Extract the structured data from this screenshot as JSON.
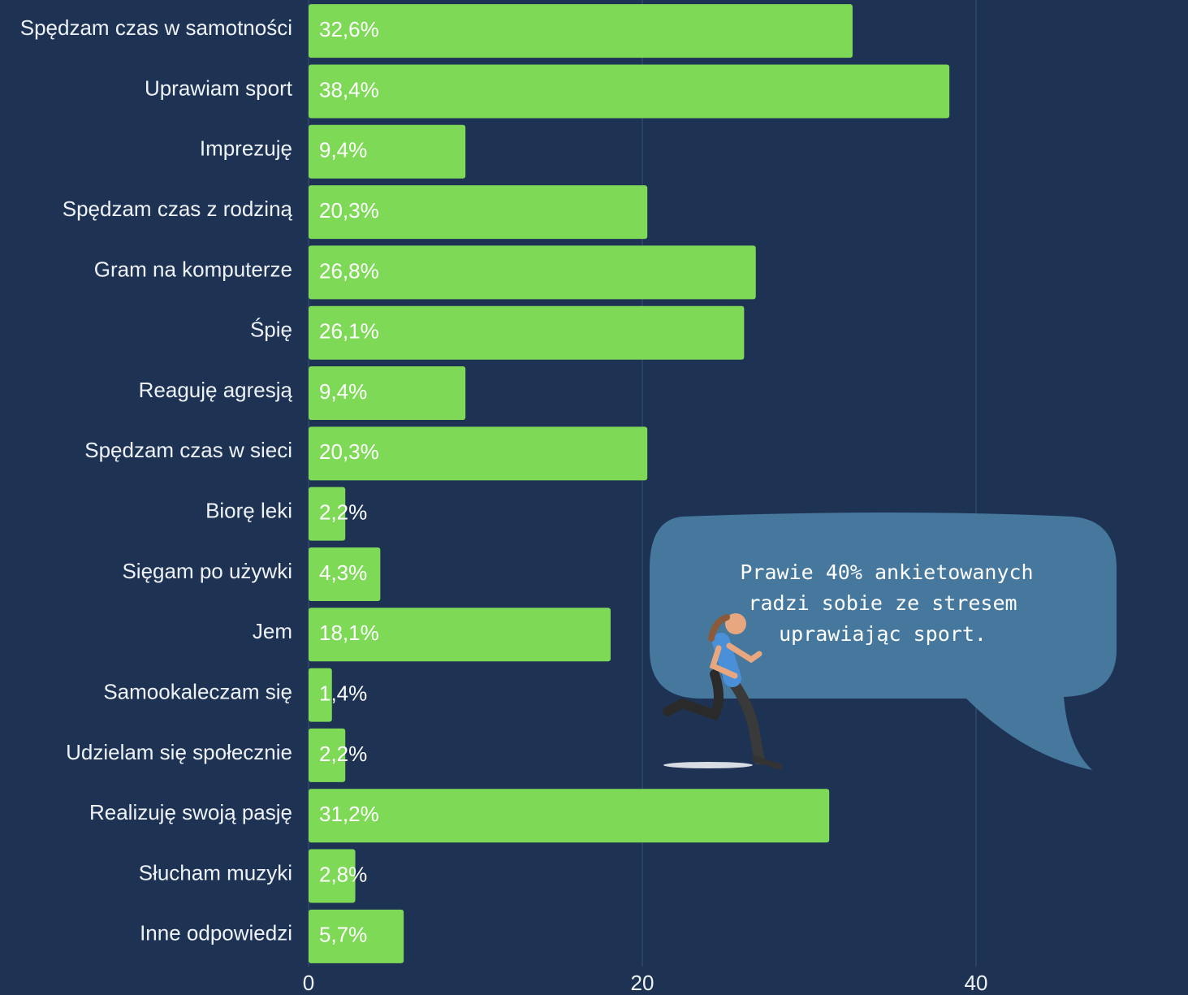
{
  "chart_data": {
    "type": "barh",
    "categories": [
      "Spędzam czas w samotności",
      "Uprawiam sport",
      "Imprezuję",
      "Spędzam czas z rodziną",
      "Gram na komputerze",
      "Śpię",
      "Reaguję agresją",
      "Spędzam czas w sieci",
      "Biorę leki",
      "Sięgam po używki",
      "Jem",
      "Samookaleczam się",
      "Udzielam się społecznie",
      "Realizuję swoją pasję",
      "Słucham muzyki",
      "Inne odpowiedzi"
    ],
    "values": [
      32.6,
      38.4,
      9.4,
      20.3,
      26.8,
      26.1,
      9.4,
      20.3,
      2.2,
      4.3,
      18.1,
      1.4,
      2.2,
      31.2,
      2.8,
      5.7
    ],
    "value_labels": [
      "32,6%",
      "38,4%",
      "9,4%",
      "20,3%",
      "26,8%",
      "26,1%",
      "9,4%",
      "20,3%",
      "2,2%",
      "4,3%",
      "18,1%",
      "1,4%",
      "2,2%",
      "31,2%",
      "2,8%",
      "5,7%"
    ],
    "color": "#7ed957",
    "xlim": [
      0,
      52.7
    ],
    "xticks": [
      0,
      20,
      40
    ],
    "grid": true,
    "annotation": [
      "Prawie 40% ankietowanych",
      "radzi sobie ze stresem",
      "uprawiając sport."
    ]
  }
}
